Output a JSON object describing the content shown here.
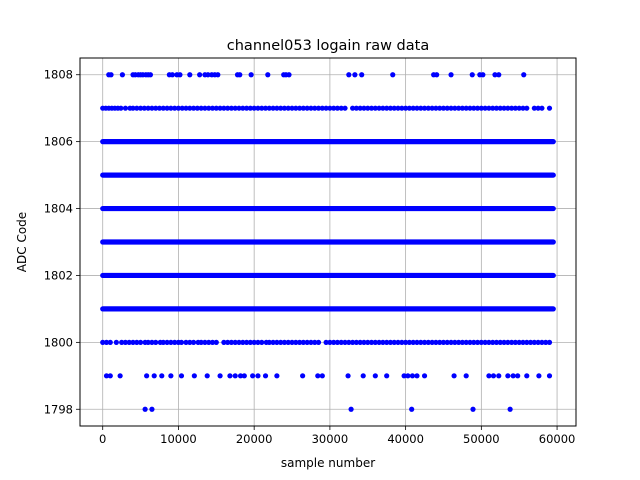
{
  "chart_data": {
    "type": "scatter",
    "title": "channel053 logain raw data",
    "xlabel": "sample number",
    "ylabel": "ADC Code",
    "xlim": [
      -3000,
      62500
    ],
    "ylim": [
      1797.5,
      1808.5
    ],
    "xticks": [
      0,
      10000,
      20000,
      30000,
      40000,
      50000,
      60000
    ],
    "xtick_labels": [
      "0",
      "10000",
      "20000",
      "30000",
      "40000",
      "50000",
      "60000"
    ],
    "yticks": [
      1798,
      1800,
      1802,
      1804,
      1806,
      1808
    ],
    "ytick_labels": [
      "1798",
      "1800",
      "1802",
      "1804",
      "1806",
      "1808"
    ],
    "grid": true,
    "marker_color": "#0000ff",
    "series": [
      {
        "x_range": [
          0,
          59500
        ],
        "dense_levels": [
          1801,
          1802,
          1803,
          1804,
          1805,
          1806
        ],
        "level_1800": [
          0,
          500,
          1000,
          1800,
          2500,
          3000,
          3500,
          4000,
          4500,
          5000,
          5600,
          6000,
          6500,
          7000,
          7600,
          8000,
          8500,
          9000,
          9500,
          10000,
          10400,
          11000,
          11500,
          12000,
          12600,
          13000,
          13500,
          14000,
          14500,
          15000,
          16000,
          16500,
          17000,
          17500,
          18000,
          18500,
          19000,
          19500,
          20000,
          20500,
          21000,
          21600,
          22000,
          22500,
          23000,
          23500,
          24000,
          24500,
          25000,
          25500,
          26000,
          26500,
          27000,
          27500,
          28000,
          28500,
          29500,
          30000,
          30500,
          31000,
          31500,
          32000,
          32500,
          33000,
          33500,
          34000,
          34500,
          35000,
          35500,
          36000,
          36500,
          37000,
          37500,
          38000,
          38500,
          39000,
          39500,
          40000,
          40500,
          41000,
          41500,
          42000,
          42500,
          43000,
          43500,
          44000,
          44500,
          45000,
          45500,
          46000,
          46500,
          47000,
          47500,
          48000,
          48500,
          49000,
          49500,
          50000,
          50500,
          51000,
          51500,
          52000,
          52500,
          53000,
          53500,
          54000,
          54500,
          55000,
          55500,
          56000,
          56500,
          57000,
          57500,
          58000,
          58500,
          59000
        ],
        "level_1807": [
          0,
          400,
          800,
          1200,
          1600,
          2000,
          2400,
          3000,
          3600,
          4000,
          4500,
          5000,
          5500,
          6000,
          6500,
          7000,
          7500,
          8000,
          8500,
          9000,
          9500,
          10000,
          10500,
          11000,
          11500,
          12000,
          12500,
          13000,
          13500,
          14000,
          14500,
          15000,
          15500,
          16000,
          16500,
          17000,
          17500,
          18000,
          18500,
          19000,
          19500,
          20000,
          20500,
          21000,
          21500,
          22000,
          22500,
          23000,
          23500,
          24000,
          24500,
          25000,
          25500,
          26000,
          26500,
          27000,
          27500,
          28000,
          28500,
          29000,
          29500,
          30000,
          30500,
          31000,
          31500,
          32000,
          33000,
          33500,
          34000,
          34500,
          35000,
          35500,
          36000,
          36500,
          37000,
          37500,
          38000,
          38500,
          39000,
          39500,
          40000,
          40500,
          41000,
          41500,
          42000,
          42500,
          43000,
          43500,
          44000,
          44500,
          45000,
          45500,
          46000,
          46500,
          47000,
          47500,
          48000,
          48500,
          49000,
          49500,
          50000,
          50500,
          51000,
          51500,
          52000,
          52500,
          53000,
          53500,
          54000,
          54500,
          55000,
          55500,
          56000,
          57000,
          57500,
          58000,
          59000
        ],
        "level_1808": [
          800,
          1100,
          2600,
          4000,
          4300,
          4700,
          5000,
          5300,
          5700,
          6000,
          6300,
          8800,
          9200,
          9800,
          10200,
          11500,
          12800,
          13500,
          13900,
          14400,
          14800,
          15200,
          17800,
          18100,
          19600,
          21800,
          23900,
          24200,
          24600,
          32500,
          33300,
          34200,
          38300,
          43700,
          44100,
          46000,
          48800,
          49800,
          50200,
          51800,
          52300,
          55600
        ],
        "level_1799": [
          500,
          1000,
          2300,
          5800,
          6800,
          7800,
          9000,
          10400,
          12100,
          13800,
          15500,
          16800,
          17500,
          18200,
          18700,
          19800,
          20500,
          21500,
          23000,
          26400,
          28400,
          29000,
          32400,
          34400,
          36000,
          37500,
          39800,
          40300,
          40900,
          41500,
          42500,
          46400,
          48000,
          51000,
          51600,
          52300,
          53500,
          54200,
          54800,
          56000,
          57600,
          59000
        ],
        "level_1798": [
          5600,
          6500,
          32800,
          40800,
          48900,
          53800
        ]
      }
    ]
  }
}
